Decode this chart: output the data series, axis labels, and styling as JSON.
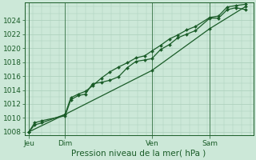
{
  "xlabel": "Pression niveau de la mer( hPa )",
  "bg_color": "#cce8d8",
  "grid_color": "#aacebb",
  "line_color": "#1a5c28",
  "ylim": [
    1007.5,
    1026.5
  ],
  "yticks": [
    1008,
    1010,
    1012,
    1014,
    1016,
    1018,
    1020,
    1022,
    1024
  ],
  "day_labels": [
    "Jeu",
    "Dim",
    "Ven",
    "Sam"
  ],
  "day_positions": [
    0.0,
    2.5,
    8.5,
    12.5
  ],
  "vline_positions": [
    0.0,
    2.5,
    8.5,
    12.5
  ],
  "xlim": [
    -0.3,
    15.5
  ],
  "series1_x": [
    0.0,
    0.4,
    0.9,
    2.5,
    2.9,
    3.4,
    3.9,
    4.4,
    5.0,
    5.6,
    6.2,
    6.8,
    7.4,
    8.0,
    8.5,
    9.1,
    9.7,
    10.3,
    10.9,
    11.5,
    12.5,
    13.1,
    13.7,
    14.3,
    15.0
  ],
  "series1_y": [
    1008.0,
    1009.3,
    1009.6,
    1010.3,
    1012.6,
    1013.2,
    1013.4,
    1014.9,
    1015.1,
    1015.4,
    1015.9,
    1017.2,
    1018.1,
    1018.3,
    1018.5,
    1019.8,
    1020.5,
    1021.5,
    1022.0,
    1022.5,
    1024.3,
    1024.3,
    1025.5,
    1025.8,
    1025.5
  ],
  "series2_x": [
    0.0,
    0.4,
    0.9,
    2.5,
    2.9,
    3.4,
    3.9,
    4.4,
    5.0,
    5.6,
    6.2,
    6.8,
    7.4,
    8.0,
    8.5,
    9.1,
    9.7,
    10.3,
    10.9,
    11.5,
    12.5,
    13.1,
    13.7,
    14.3,
    15.0
  ],
  "series2_y": [
    1008.0,
    1009.0,
    1009.3,
    1010.5,
    1012.9,
    1013.4,
    1013.8,
    1014.6,
    1015.7,
    1016.6,
    1017.3,
    1017.9,
    1018.6,
    1018.9,
    1019.6,
    1020.4,
    1021.3,
    1021.9,
    1022.6,
    1023.1,
    1024.4,
    1024.6,
    1025.9,
    1026.1,
    1026.3
  ],
  "series3_x": [
    0.0,
    2.5,
    8.5,
    12.5,
    15.0
  ],
  "series3_y": [
    1008.0,
    1010.5,
    1016.8,
    1022.8,
    1026.0
  ],
  "tick_fontsize": 6.5,
  "label_fontsize": 7.5
}
